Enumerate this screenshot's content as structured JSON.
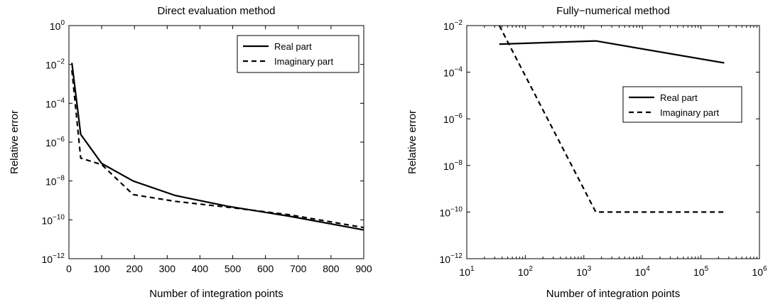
{
  "chart_data": [
    {
      "type": "line",
      "title": "Direct evaluation method",
      "xlabel": "Number of integration points",
      "ylabel": "Relative error",
      "xscale": "linear",
      "yscale": "log",
      "xlim": [
        0,
        900
      ],
      "ylim_exponents": [
        -12,
        0
      ],
      "xticks": [
        "0",
        "100",
        "200",
        "300",
        "400",
        "500",
        "600",
        "700",
        "800",
        "900"
      ],
      "yticks": [
        {
          "base": "10",
          "exp": "0"
        },
        {
          "base": "10",
          "exp": "−2"
        },
        {
          "base": "10",
          "exp": "−4"
        },
        {
          "base": "10",
          "exp": "−6"
        },
        {
          "base": "10",
          "exp": "−8"
        },
        {
          "base": "10",
          "exp": "−10"
        },
        {
          "base": "10",
          "exp": "−12"
        }
      ],
      "legend_position": "top-right",
      "series": [
        {
          "name": "Real part",
          "style": "solid",
          "x": [
            9,
            36,
            100,
            196,
            324,
            484,
            676,
            900
          ],
          "y": [
            0.012,
            2.5e-06,
            8e-08,
            1e-08,
            1.8e-09,
            5e-10,
            1.5e-10,
            3e-11
          ]
        },
        {
          "name": "Imaginary part",
          "style": "dashed",
          "x": [
            9,
            36,
            100,
            196,
            324,
            484,
            676,
            900
          ],
          "y": [
            0.005,
            1.5e-07,
            7e-08,
            2e-09,
            9e-10,
            4.5e-10,
            1.8e-10,
            4e-11
          ]
        }
      ]
    },
    {
      "type": "line",
      "title": "Fully−numerical method",
      "xlabel": "Number of integration points",
      "ylabel": "Relative error",
      "xscale": "log",
      "yscale": "log",
      "xlim_exponents": [
        1,
        6
      ],
      "ylim_exponents": [
        -12,
        -2
      ],
      "xticks": [
        {
          "base": "10",
          "exp": "1"
        },
        {
          "base": "10",
          "exp": "2"
        },
        {
          "base": "10",
          "exp": "3"
        },
        {
          "base": "10",
          "exp": "4"
        },
        {
          "base": "10",
          "exp": "5"
        },
        {
          "base": "10",
          "exp": "6"
        }
      ],
      "yticks": [
        {
          "base": "10",
          "exp": "−2"
        },
        {
          "base": "10",
          "exp": "−4"
        },
        {
          "base": "10",
          "exp": "−6"
        },
        {
          "base": "10",
          "exp": "−8"
        },
        {
          "base": "10",
          "exp": "−10"
        },
        {
          "base": "10",
          "exp": "−12"
        }
      ],
      "legend_position": "right",
      "series": [
        {
          "name": "Real part",
          "style": "solid",
          "x": [
            36,
            1600,
            250000
          ],
          "y": [
            0.0016,
            0.0022,
            0.00025
          ]
        },
        {
          "name": "Imaginary part",
          "style": "dashed",
          "x": [
            36,
            1600,
            250000
          ],
          "y": [
            0.01,
            1e-10,
            1e-10
          ]
        }
      ]
    }
  ]
}
